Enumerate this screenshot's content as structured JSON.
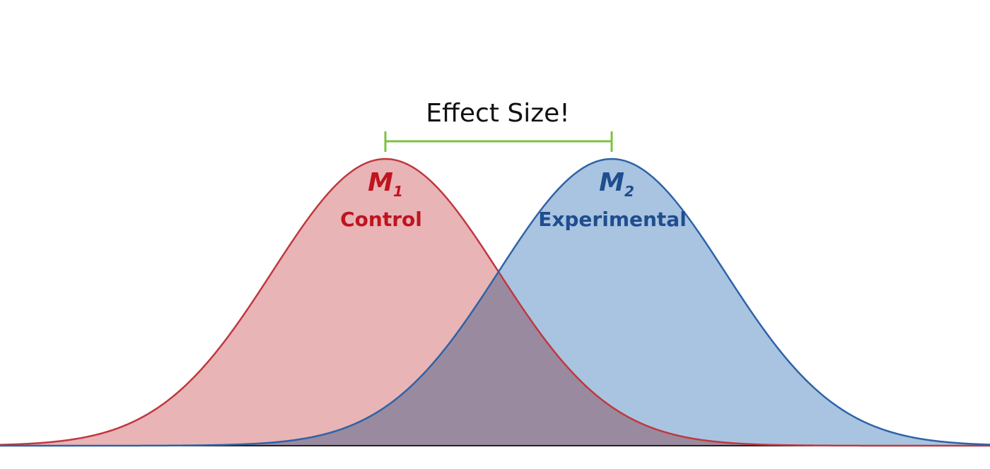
{
  "title": "Effect Size!",
  "groups": [
    {
      "mean_symbol": "M",
      "mean_subscript": "1",
      "label": "Control"
    },
    {
      "mean_symbol": "M",
      "mean_subscript": "2",
      "label": "Experimental"
    }
  ]
}
